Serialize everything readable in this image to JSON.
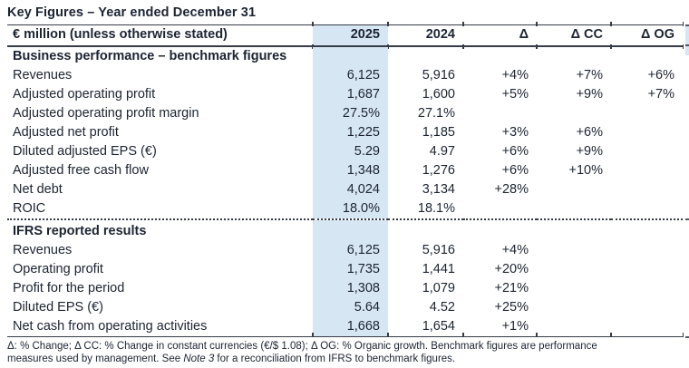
{
  "title": "Key Figures – Year ended December 31",
  "colors": {
    "text": "#1c2433",
    "highlight": "#d7e6f3",
    "rule": "#353b47"
  },
  "table": {
    "columns": [
      "€ million (unless otherwise stated)",
      "2025",
      "2024",
      "Δ",
      "Δ CC",
      "Δ OG"
    ],
    "sections": [
      {
        "heading": "Business performance – benchmark figures",
        "rows": [
          {
            "label": "Revenues",
            "values": [
              "6,125",
              "5,916",
              "+4%",
              "+7%",
              "+6%"
            ]
          },
          {
            "label": "Adjusted operating profit",
            "values": [
              "1,687",
              "1,600",
              "+5%",
              "+9%",
              "+7%"
            ]
          },
          {
            "label": "Adjusted operating profit margin",
            "values": [
              "27.5%",
              "27.1%",
              "",
              "",
              ""
            ]
          },
          {
            "label": "Adjusted net profit",
            "values": [
              "1,225",
              "1,185",
              "+3%",
              "+6%",
              ""
            ]
          },
          {
            "label": "Diluted adjusted EPS (€)",
            "values": [
              "5.29",
              "4.97",
              "+6%",
              "+9%",
              ""
            ]
          },
          {
            "label": "Adjusted free cash flow",
            "values": [
              "1,348",
              "1,276",
              "+6%",
              "+10%",
              ""
            ]
          },
          {
            "label": "Net debt",
            "values": [
              "4,024",
              "3,134",
              "+28%",
              "",
              ""
            ]
          },
          {
            "label": "ROIC",
            "values": [
              "18.0%",
              "18.1%",
              "",
              "",
              ""
            ]
          }
        ]
      },
      {
        "heading": "IFRS reported results",
        "rows": [
          {
            "label": "Revenues",
            "values": [
              "6,125",
              "5,916",
              "+4%",
              "",
              ""
            ]
          },
          {
            "label": "Operating profit",
            "values": [
              "1,735",
              "1,441",
              "+20%",
              "",
              ""
            ]
          },
          {
            "label": "Profit for the period",
            "values": [
              "1,308",
              "1,079",
              "+21%",
              "",
              ""
            ]
          },
          {
            "label": "Diluted EPS (€)",
            "values": [
              "5.64",
              "4.52",
              "+25%",
              "",
              ""
            ]
          },
          {
            "label": "Net cash from operating activities",
            "values": [
              "1,668",
              "1,654",
              "+1%",
              "",
              ""
            ]
          }
        ]
      }
    ]
  },
  "footnote": {
    "text_before_note": "Δ: % Change; Δ CC: % Change in constant currencies (€/$ 1.08); Δ OG: % Organic growth. Benchmark figures are performance measures used by management. See ",
    "note_ref": "Note 3",
    "text_after_note": " for a reconciliation from IFRS to benchmark figures."
  }
}
